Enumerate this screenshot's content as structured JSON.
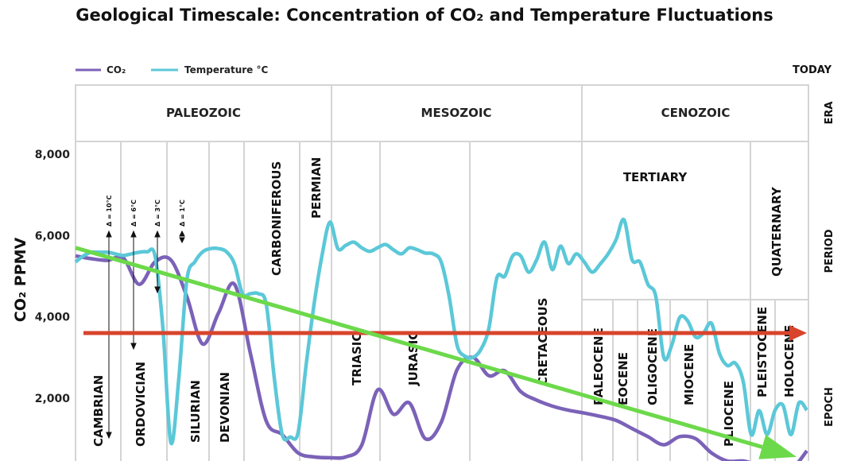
{
  "chart_data": {
    "type": "line",
    "title": "Geological Timescale: Concentration of CO₂ and Temperature Fluctuations",
    "ylabel": "CO₂ PPMV",
    "ylim": [
      0,
      8000
    ],
    "yticks": [
      "2,000",
      "4,000",
      "6,000",
      "8,000"
    ],
    "ytick_values": [
      2000,
      4000,
      6000,
      8000
    ],
    "grid": true,
    "legend_position": "top-left",
    "today_label": "TODAY",
    "row_labels": {
      "era": "ERA",
      "period": "PERIOD",
      "epoch": "EPOCH"
    },
    "eras": [
      "PALEOZOIC",
      "MESOZOIC",
      "CENOZOIC"
    ],
    "periods": [
      "CAMBRIAN",
      "ORDOVICIAN",
      "SILURIAN",
      "DEVONIAN",
      "CARBONIFEROUS",
      "PERMIAN",
      "TRIASIC",
      "JURASIC",
      "CRETACEOUS",
      "TERTIARY",
      "QUATERNARY"
    ],
    "epochs": [
      "PALEOCENE",
      "EOCENE",
      "OLIGOCENE",
      "MIOCENE",
      "PLIOCENE",
      "PLEISTOCENE",
      "HOLOCENE"
    ],
    "annotations": [
      "Δ = 10°C",
      "Δ = 6°C",
      "Δ = 3°C",
      "Δ = 1°C"
    ],
    "series": [
      {
        "name": "CO₂",
        "color": "#7b62b8",
        "values": [
          5500,
          5430,
          5390,
          5450,
          4800,
          5350,
          5400,
          4500,
          3330,
          4100,
          4800,
          3100,
          1430,
          1100,
          650,
          550,
          530,
          550,
          840,
          2200,
          1600,
          1880,
          1000,
          1400,
          2700,
          3000,
          2550,
          2670,
          2160,
          1950,
          1800,
          1700,
          1630,
          1550,
          1450,
          1250,
          1050,
          850,
          1050,
          1000,
          650,
          450,
          450,
          350,
          350,
          250,
          700
        ]
      },
      {
        "name": "Temperature °C",
        "color": "#5bc8d8",
        "values": [
          5350,
          5500,
          5590,
          5590,
          5590,
          5550,
          5510,
          5550,
          5590,
          5600,
          5500,
          3700,
          900,
          2500,
          4900,
          5350,
          5600,
          5680,
          5680,
          5600,
          5300,
          4570,
          4570,
          4570,
          4300,
          2500,
          1100,
          1040,
          1150,
          2800,
          4300,
          5500,
          6330,
          5680,
          5760,
          5840,
          5700,
          5610,
          5700,
          5780,
          5650,
          5550,
          5700,
          5650,
          5570,
          5550,
          5350,
          4500,
          3300,
          3030,
          3000,
          3200,
          3720,
          4960,
          5000,
          5500,
          5500,
          5100,
          5400,
          5840,
          5160,
          5740,
          5310,
          5550,
          5350,
          5100,
          5300,
          5550,
          5900,
          6390,
          5410,
          5350,
          4800,
          4500,
          3000,
          3300,
          3980,
          3900,
          3500,
          3600,
          3840,
          3100,
          2800,
          2860,
          2400,
          1100,
          1690,
          1100,
          1700,
          1820,
          1100,
          1880,
          1700
        ]
      }
    ],
    "trend_arrows": [
      {
        "color": "#d8442c",
        "from_value": 3600,
        "to_value": 3600
      },
      {
        "color": "#6cd94a",
        "from_value": 5700,
        "to_value": 550
      }
    ]
  }
}
